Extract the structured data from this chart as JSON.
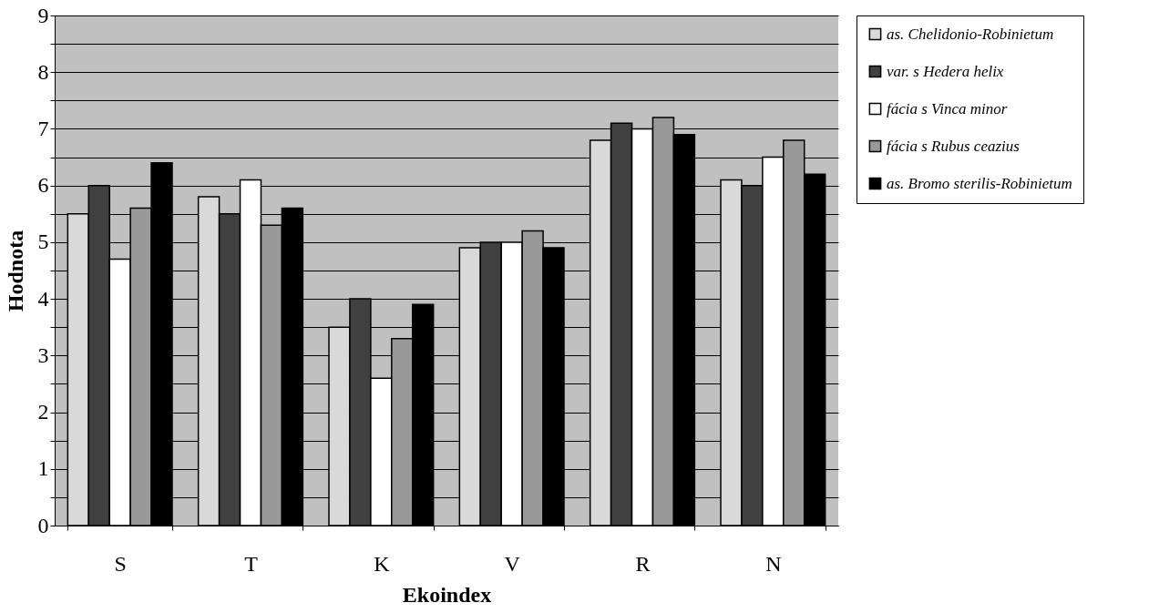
{
  "chart_data": {
    "type": "bar",
    "xlabel": "Ekoindex",
    "ylabel": "Hodnota",
    "categories": [
      "S",
      "T",
      "K",
      "V",
      "R",
      "N"
    ],
    "series": [
      {
        "name": "as. Chelidonio-Robinietum",
        "color": "#d9d9d9",
        "values": [
          5.5,
          5.8,
          3.5,
          4.9,
          6.8,
          6.1
        ]
      },
      {
        "name": "var. s Hedera helix",
        "color": "#404040",
        "values": [
          6.0,
          5.5,
          4.0,
          5.0,
          7.1,
          6.0
        ]
      },
      {
        "name": "fácia s Vinca minor",
        "color": "#ffffff",
        "values": [
          4.7,
          6.1,
          2.6,
          5.0,
          7.0,
          6.5
        ]
      },
      {
        "name": "fácia s Rubus ceazius",
        "color": "#999999",
        "values": [
          5.6,
          5.3,
          3.3,
          5.2,
          7.2,
          6.8
        ]
      },
      {
        "name": "as. Bromo sterilis-Robinietum",
        "color": "#000000",
        "values": [
          6.4,
          5.6,
          3.9,
          4.9,
          6.9,
          6.2
        ]
      }
    ],
    "ylim": [
      0,
      9
    ],
    "yticks": [
      0,
      {
        "value": 0.5,
        "label": null
      },
      1,
      {
        "value": 1.5,
        "label": null
      },
      2,
      {
        "value": 2.5,
        "label": null
      },
      3,
      {
        "value": 3.5,
        "label": null
      },
      4,
      {
        "value": 4.5,
        "label": null
      },
      5,
      {
        "value": 5.5,
        "label": null
      },
      6,
      {
        "value": 6.5,
        "label": null
      },
      7,
      {
        "value": 7.5,
        "label": null
      },
      8,
      {
        "value": 8.5,
        "label": null
      },
      9
    ],
    "grid": "y",
    "legend": "right"
  }
}
